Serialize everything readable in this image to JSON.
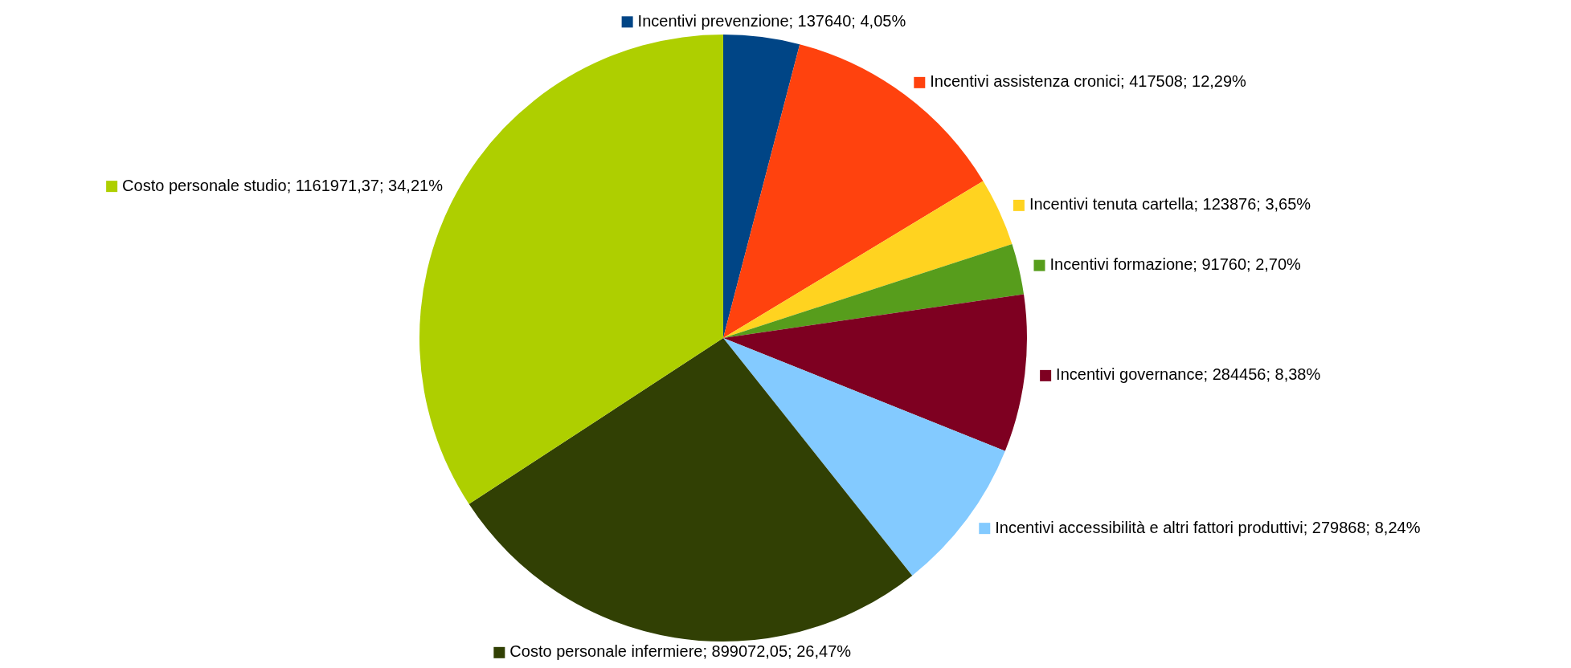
{
  "chart_data": {
    "type": "pie",
    "categories": [
      "Incentivi prevenzione",
      "Incentivi assistenza cronici",
      "Incentivi tenuta cartella",
      "Incentivi formazione",
      "Incentivi governance",
      "Incentivi accessibilità e altri fattori produttivi",
      "Costo personale infermiere",
      "Costo personale studio"
    ],
    "values": [
      137640,
      417508,
      123876,
      91760,
      284456,
      279868,
      899072.05,
      1161971.37
    ],
    "value_labels": [
      "137640; 4,05%",
      "417508; 12,29%",
      "123876; 3,65%",
      "91760; 2,70%",
      "284456; 8,38%",
      "279868; 8,24%",
      "899072,05; 26,47%",
      "1161971,37; 34,21%"
    ],
    "legend": "right",
    "colors": [
      "#004586",
      "#ff420e",
      "#ffd320",
      "#579d1c",
      "#7e0021",
      "#83caff",
      "#314004",
      "#aecf00"
    ]
  }
}
